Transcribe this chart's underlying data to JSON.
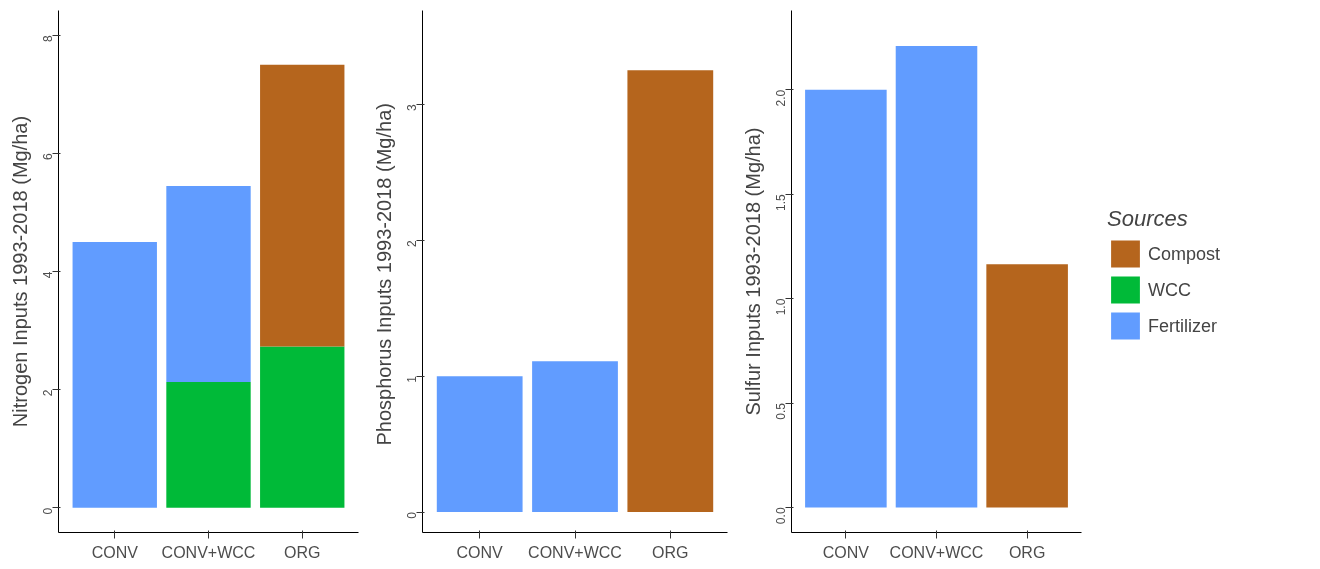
{
  "chart_data": [
    {
      "type": "bar",
      "stacked": true,
      "ylabel": "Nitrogen Inputs 1993-2018 (Mg/ha)",
      "categories": [
        "CONV",
        "CONV+WCC",
        "ORG"
      ],
      "ylim": [
        -0.42,
        8.42
      ],
      "yticks": [
        0,
        2,
        4,
        6,
        8
      ],
      "series": [
        {
          "color": "#00ba38",
          "values": [
            null,
            2.13,
            2.73
          ]
        },
        {
          "color": "#619cff",
          "values": [
            4.5,
            3.32,
            null
          ]
        },
        {
          "color": "#b5651d",
          "values": [
            null,
            null,
            4.77
          ]
        }
      ]
    },
    {
      "type": "bar",
      "stacked": true,
      "ylabel": "Phosphorus Inputs 1993-2018  (Mg/ha)",
      "categories": [
        "CONV",
        "CONV+WCC",
        "ORG"
      ],
      "ylim": [
        -0.15,
        3.69
      ],
      "yticks": [
        0,
        1,
        2,
        3
      ],
      "series": [
        {
          "color": "#619cff",
          "values": [
            1.0,
            1.11,
            null
          ]
        },
        {
          "color": "#b5651d",
          "values": [
            null,
            null,
            3.25
          ]
        }
      ]
    },
    {
      "type": "bar",
      "stacked": true,
      "ylabel": "Sulfur Inputs 1993-2018 (Mg/ha)",
      "categories": [
        "CONV",
        "CONV+WCC",
        "ORG"
      ],
      "ylim": [
        -0.12,
        2.38
      ],
      "yticks": [
        {
          "value": 0,
          "label": "0.0"
        },
        0.5,
        {
          "value": 1,
          "label": "1.0"
        },
        1.5,
        {
          "value": 2,
          "label": "2.0"
        }
      ],
      "legend": "right",
      "legend_title": "Sources",
      "series": [
        {
          "name": "Compost",
          "color": "#b5651d",
          "values": [
            null,
            null,
            1.165
          ]
        },
        {
          "name": "WCC",
          "color": "#00ba38",
          "values": [
            null,
            null,
            null
          ]
        },
        {
          "name": "Fertilizer",
          "color": "#619cff",
          "values": [
            2.0,
            2.21,
            null
          ]
        }
      ]
    }
  ]
}
